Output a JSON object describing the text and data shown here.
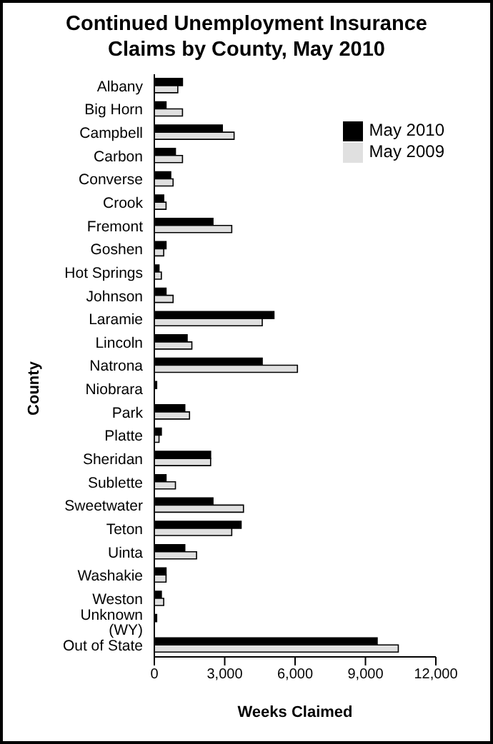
{
  "chart_data": {
    "type": "bar",
    "orientation": "horizontal",
    "title": "Continued Unemployment Insurance Claims by County, May 2010",
    "xlabel": "Weeks Claimed",
    "ylabel": "County",
    "categories": [
      "Albany",
      "Big Horn",
      "Campbell",
      "Carbon",
      "Converse",
      "Crook",
      "Fremont",
      "Goshen",
      "Hot Springs",
      "Johnson",
      "Laramie",
      "Lincoln",
      "Natrona",
      "Niobrara",
      "Park",
      "Platte",
      "Sheridan",
      "Sublette",
      "Sweetwater",
      "Teton",
      "Uinta",
      "Washakie",
      "Weston",
      "Unknown (WY)",
      "Out of State"
    ],
    "series": [
      {
        "name": "May 2010",
        "color": "#000000",
        "values": [
          1200,
          500,
          2900,
          900,
          700,
          400,
          2500,
          500,
          200,
          500,
          5100,
          1400,
          4600,
          100,
          1300,
          300,
          2400,
          500,
          2500,
          3700,
          1300,
          500,
          300,
          100,
          9500
        ]
      },
      {
        "name": "May 2009",
        "color": "#e0e0e0",
        "values": [
          1000,
          1200,
          3400,
          1200,
          800,
          500,
          3300,
          400,
          300,
          800,
          4600,
          1600,
          6100,
          0,
          1500,
          200,
          2400,
          900,
          3800,
          3300,
          1800,
          500,
          400,
          0,
          10400
        ]
      }
    ],
    "xlim": [
      0,
      12000
    ],
    "xticks": [
      {
        "value": 0,
        "label": "0"
      },
      {
        "value": 3000,
        "label": "3,000"
      },
      {
        "value": 6000,
        "label": "6,000"
      },
      {
        "value": 9000,
        "label": "9,000"
      },
      {
        "value": 12000,
        "label": "12,000"
      }
    ],
    "grid": false,
    "legend": "top right"
  }
}
